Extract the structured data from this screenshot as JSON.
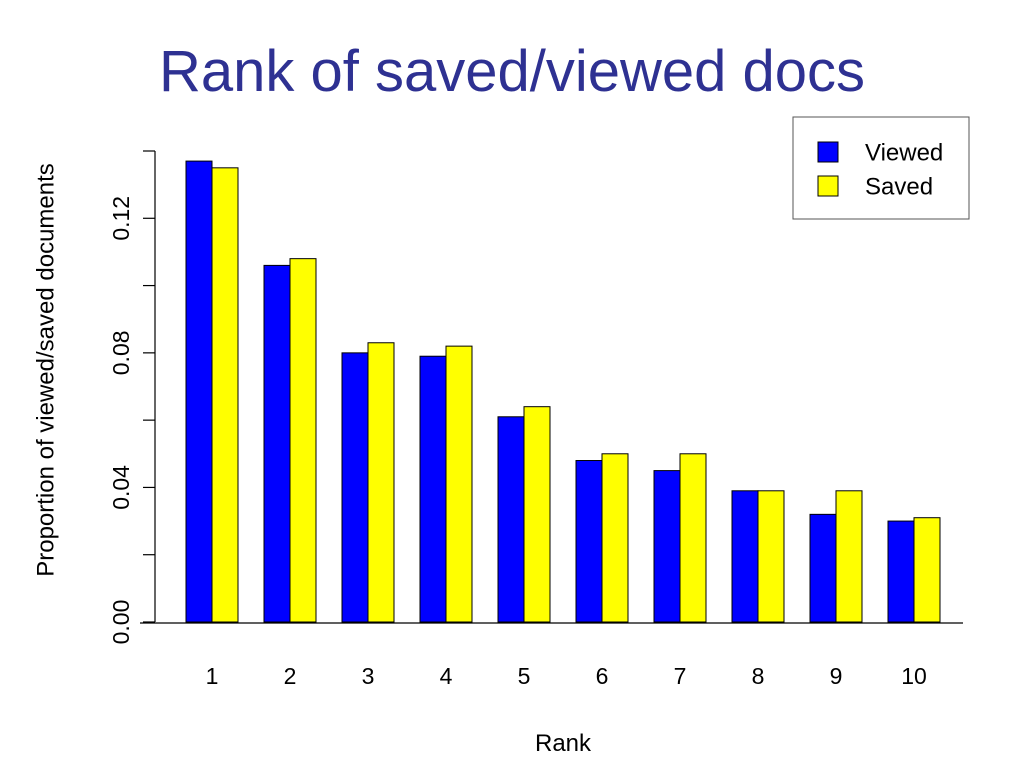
{
  "slide": {
    "title": "Rank of saved/viewed docs"
  },
  "colors": {
    "viewed": "#0000ff",
    "saved": "#ffff00",
    "title": "#2e3192"
  },
  "chart_data": {
    "type": "bar",
    "title": "",
    "xlabel": "Rank",
    "ylabel": "Proportion of viewed/saved documents",
    "categories": [
      "1",
      "2",
      "3",
      "4",
      "5",
      "6",
      "7",
      "8",
      "9",
      "10"
    ],
    "series": [
      {
        "name": "Viewed",
        "values": [
          0.137,
          0.106,
          0.08,
          0.079,
          0.061,
          0.048,
          0.045,
          0.039,
          0.032,
          0.03
        ]
      },
      {
        "name": "Saved",
        "values": [
          0.135,
          0.108,
          0.083,
          0.082,
          0.064,
          0.05,
          0.05,
          0.039,
          0.039,
          0.031
        ]
      }
    ],
    "ylim": [
      0,
      0.14
    ],
    "yticks": [
      0.0,
      0.02,
      0.04,
      0.06,
      0.08,
      0.1,
      0.12,
      0.14
    ],
    "ytick_labels": [
      "0.00",
      "",
      "0.04",
      "",
      "0.08",
      "",
      "0.12",
      ""
    ],
    "grid": false,
    "legend_position": "top-right"
  }
}
